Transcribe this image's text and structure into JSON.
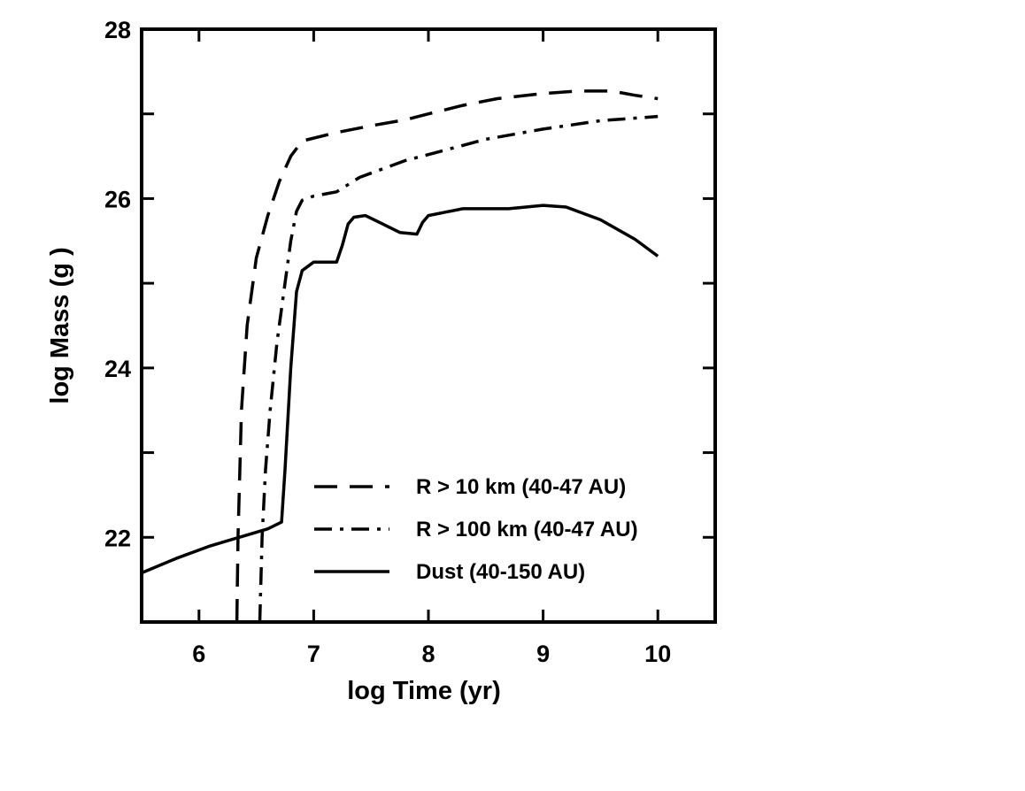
{
  "chart_data": {
    "type": "line",
    "xlabel": "log Time (yr)",
    "ylabel": "log Mass (g )",
    "xlim": [
      5.5,
      10.5
    ],
    "ylim": [
      21,
      28
    ],
    "x_ticks": [
      6,
      7,
      8,
      9,
      10
    ],
    "y_ticks_labeled": [
      22,
      24,
      26,
      28
    ],
    "y_ticks_minor": [
      23,
      25,
      27
    ],
    "grid": false,
    "legend_position": "lower-right",
    "series": [
      {
        "name": "R > 10 km (40-47 AU)",
        "style": "dashed",
        "color": "#000000",
        "x": [
          6.33,
          6.34,
          6.37,
          6.42,
          6.5,
          6.6,
          6.7,
          6.8,
          6.9,
          7.2,
          7.5,
          7.8,
          8.0,
          8.3,
          8.6,
          9.0,
          9.3,
          9.6,
          9.8,
          10.0
        ],
        "y": [
          21.0,
          22.0,
          23.5,
          24.5,
          25.3,
          25.8,
          26.2,
          26.5,
          26.68,
          26.78,
          26.86,
          26.93,
          27.0,
          27.1,
          27.18,
          27.24,
          27.27,
          27.27,
          27.22,
          27.18
        ]
      },
      {
        "name": "R > 100 km (40-47 AU)",
        "style": "dashdot",
        "color": "#000000",
        "x": [
          6.53,
          6.55,
          6.58,
          6.62,
          6.68,
          6.75,
          6.8,
          6.85,
          6.9,
          7.0,
          7.2,
          7.4,
          7.6,
          7.8,
          8.0,
          8.5,
          9.0,
          9.5,
          10.0
        ],
        "y": [
          21.0,
          22.0,
          22.8,
          23.5,
          24.3,
          25.0,
          25.5,
          25.85,
          25.98,
          26.03,
          26.08,
          26.25,
          26.35,
          26.45,
          26.52,
          26.7,
          26.82,
          26.92,
          26.97
        ]
      },
      {
        "name": "Dust (40-150 AU)",
        "style": "solid",
        "color": "#000000",
        "x": [
          5.5,
          5.8,
          6.1,
          6.4,
          6.6,
          6.72,
          6.75,
          6.8,
          6.85,
          6.9,
          7.0,
          7.1,
          7.2,
          7.25,
          7.3,
          7.35,
          7.45,
          7.6,
          7.75,
          7.9,
          7.95,
          8.0,
          8.3,
          8.5,
          8.7,
          9.0,
          9.2,
          9.5,
          9.8,
          10.0
        ],
        "y": [
          21.58,
          21.75,
          21.9,
          22.02,
          22.1,
          22.18,
          22.8,
          24.0,
          24.9,
          25.15,
          25.25,
          25.25,
          25.25,
          25.45,
          25.7,
          25.78,
          25.8,
          25.7,
          25.6,
          25.58,
          25.72,
          25.8,
          25.88,
          25.88,
          25.88,
          25.92,
          25.9,
          25.75,
          25.52,
          25.32
        ]
      }
    ]
  }
}
